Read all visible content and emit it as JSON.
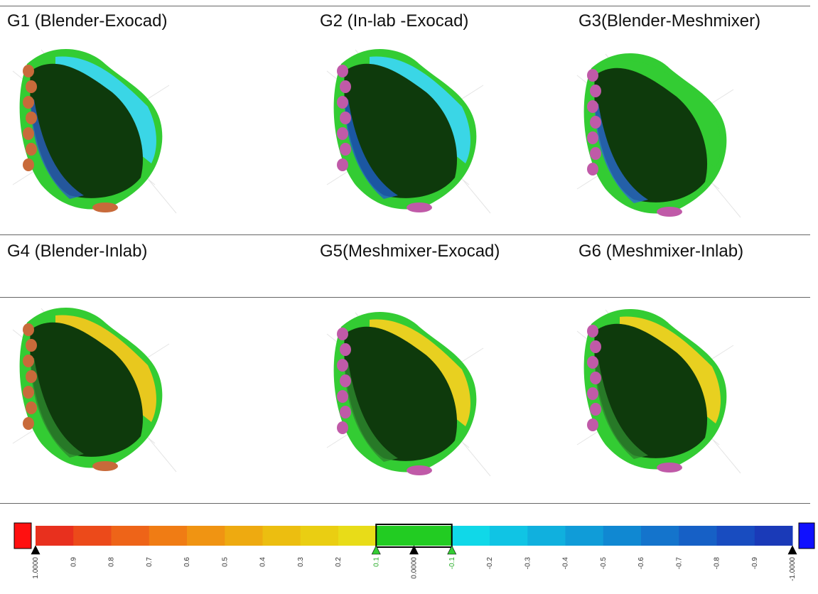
{
  "groups": [
    "G1 (Blender-Exocad)",
    "G2 (In-lab -Exocad)",
    "G3(Blender-Meshmixer)",
    "G4 (Blender-Inlab)",
    "G5(Meshmixer-Exocad)",
    "G6 (Meshmixer-Inlab)"
  ],
  "scale": {
    "labels": [
      "1.0000",
      "0.9",
      "0.8",
      "0.7",
      "0.6",
      "0.5",
      "0.4",
      "0.3",
      "0.2",
      "0.1",
      "0.0000",
      "-0.1",
      "-0.2",
      "-0.3",
      "-0.4",
      "-0.5",
      "-0.6",
      "-0.7",
      "-0.8",
      "-0.9",
      "-1.0000"
    ]
  }
}
